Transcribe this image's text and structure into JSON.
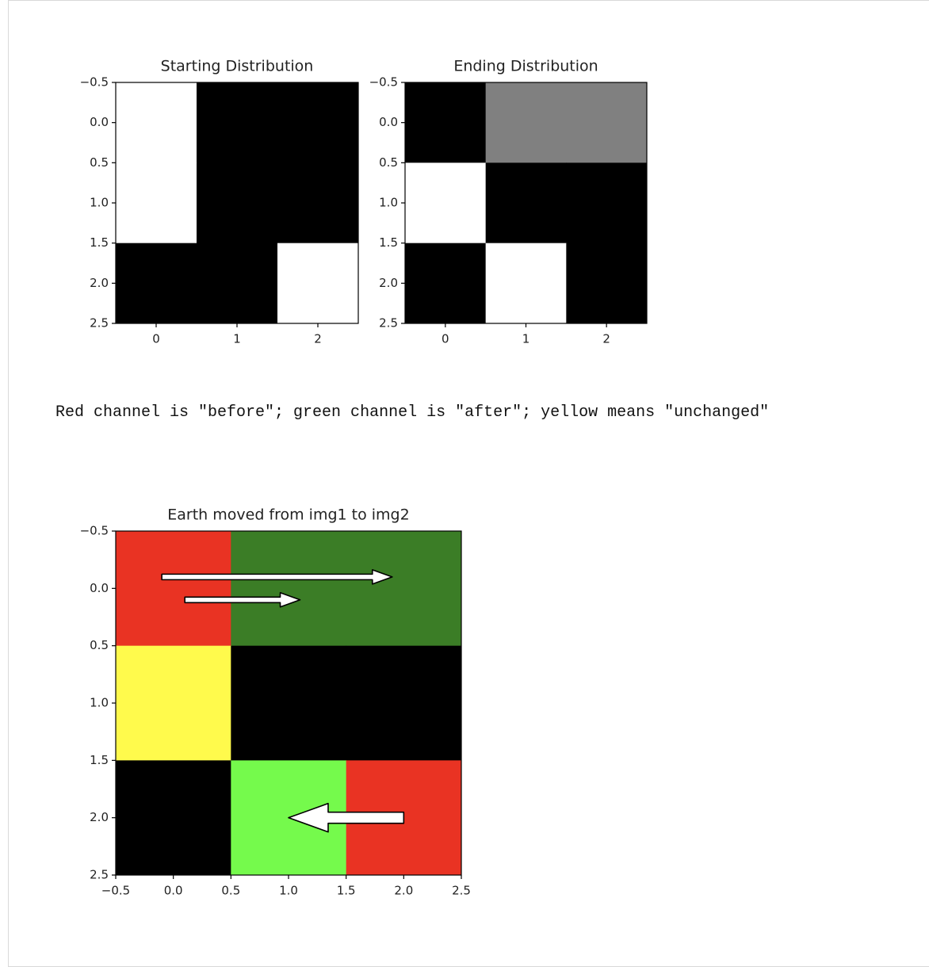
{
  "chart_data": [
    {
      "type": "image",
      "title": "Starting Distribution",
      "cmap": "gray",
      "values": [
        [
          1,
          0,
          0
        ],
        [
          1,
          0,
          0
        ],
        [
          0,
          0,
          1
        ]
      ],
      "xlim": [
        -0.5,
        2.5
      ],
      "ylim": [
        2.5,
        -0.5
      ],
      "xticks": [
        0,
        1,
        2
      ],
      "yticks": [
        {
          "value": -0.5,
          "label": "−0.5"
        },
        {
          "value": 0,
          "label": "0.0"
        },
        {
          "value": 0.5,
          "label": "0.5"
        },
        {
          "value": 1,
          "label": "1.0"
        },
        {
          "value": 1.5,
          "label": "1.5"
        },
        {
          "value": 2,
          "label": "2.0"
        },
        {
          "value": 2.5,
          "label": "2.5"
        }
      ]
    },
    {
      "type": "image",
      "title": "Ending Distribution",
      "cmap": "gray",
      "values": [
        [
          0,
          0.5,
          0.5
        ],
        [
          1,
          0,
          0
        ],
        [
          0,
          1,
          0
        ]
      ],
      "xlim": [
        -0.5,
        2.5
      ],
      "ylim": [
        2.5,
        -0.5
      ],
      "xticks": [
        0,
        1,
        2
      ],
      "yticks": [
        {
          "value": -0.5,
          "label": "−0.5"
        },
        {
          "value": 0,
          "label": "0.0"
        },
        {
          "value": 0.5,
          "label": "0.5"
        },
        {
          "value": 1,
          "label": "1.0"
        },
        {
          "value": 1.5,
          "label": "1.5"
        },
        {
          "value": 2,
          "label": "2.0"
        },
        {
          "value": 2.5,
          "label": "2.5"
        }
      ]
    },
    {
      "type": "image",
      "title": "Earth moved from img1 to img2",
      "cmap": "rgb",
      "values": [
        [
          [
            1,
            0,
            0
          ],
          [
            0,
            0.5,
            0
          ],
          [
            0,
            0.5,
            0
          ]
        ],
        [
          [
            1,
            1,
            0
          ],
          [
            0,
            0,
            0
          ],
          [
            0,
            0,
            0
          ]
        ],
        [
          [
            0,
            0,
            0
          ],
          [
            0,
            1,
            0
          ],
          [
            1,
            0,
            0
          ]
        ]
      ],
      "arrows": [
        [
          [
            -0.1,
            -0.1
          ],
          [
            1.9,
            -0.1
          ]
        ],
        [
          [
            0.1,
            0.1
          ],
          [
            1.1,
            0.1
          ]
        ],
        [
          [
            2,
            2
          ],
          [
            1,
            2
          ]
        ]
      ],
      "xlim": [
        -0.5,
        2.5
      ],
      "ylim": [
        2.5,
        -0.5
      ],
      "xticks": [
        {
          "value": -0.5,
          "label": "−0.5"
        },
        {
          "value": 0,
          "label": "0.0"
        },
        {
          "value": 0.5,
          "label": "0.5"
        },
        {
          "value": 1,
          "label": "1.0"
        },
        {
          "value": 1.5,
          "label": "1.5"
        },
        {
          "value": 2,
          "label": "2.0"
        },
        {
          "value": 2.5,
          "label": "2.5"
        }
      ],
      "yticks": [
        {
          "value": -0.5,
          "label": "−0.5"
        },
        {
          "value": 0,
          "label": "0.0"
        },
        {
          "value": 0.5,
          "label": "0.5"
        },
        {
          "value": 1,
          "label": "1.0"
        },
        {
          "value": 1.5,
          "label": "1.5"
        },
        {
          "value": 2,
          "label": "2.0"
        },
        {
          "value": 2.5,
          "label": "2.5"
        }
      ]
    }
  ],
  "caption": "Red channel is \"before\"; green channel is \"after\"; yellow means \"unchanged\""
}
